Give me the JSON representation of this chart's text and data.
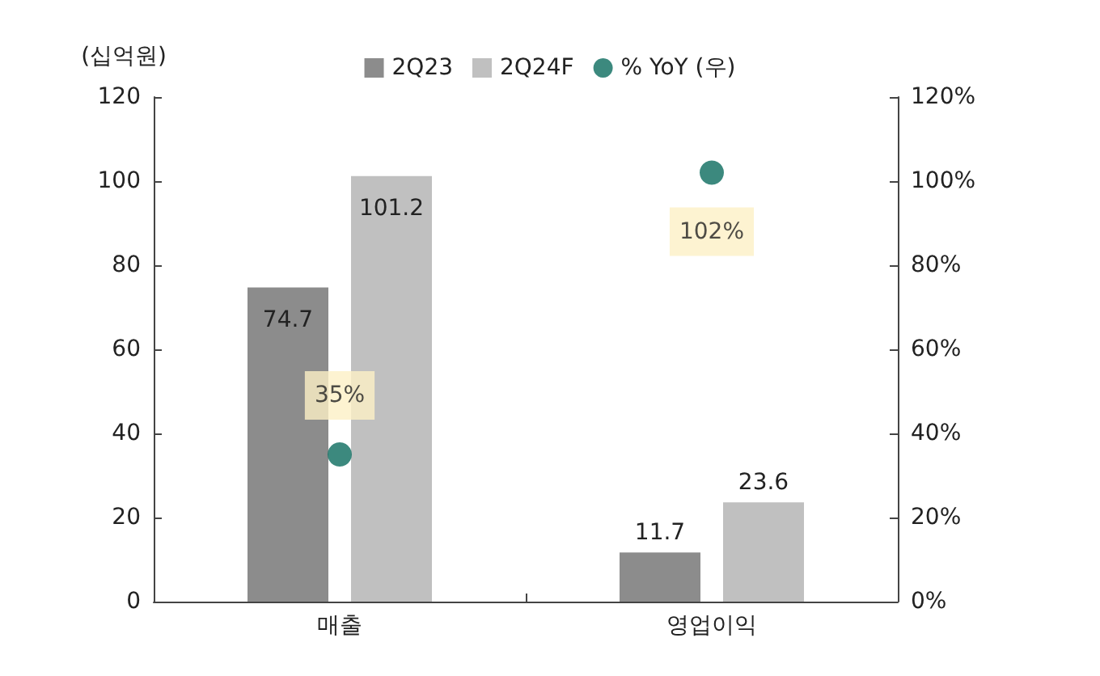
{
  "chart_data": {
    "type": "bar",
    "ylabel": "(십억원)",
    "categories": [
      "매출",
      "영업이익"
    ],
    "series": [
      {
        "name": "2Q23",
        "color": "#8c8c8c",
        "values": [
          74.7,
          11.7
        ],
        "value_labels": [
          "74.7",
          "11.7"
        ]
      },
      {
        "name": "2Q24F",
        "color": "#c0c0c0",
        "values": [
          101.2,
          23.6
        ],
        "value_labels": [
          "101.2",
          "23.6"
        ]
      },
      {
        "name": "% YoY (우)",
        "type": "scatter",
        "axis": "y2",
        "color": "#0b6b5e",
        "marker": "circle",
        "values": [
          35,
          102
        ],
        "value_labels": [
          "35%",
          "102%"
        ]
      }
    ],
    "ylim": [
      0,
      120
    ],
    "yticks": [
      0,
      20,
      40,
      60,
      80,
      100,
      120
    ],
    "y2lim": [
      0,
      120
    ],
    "y2ticks": [
      {
        "value": 0,
        "label": "0%"
      },
      {
        "value": 20,
        "label": "20%"
      },
      {
        "value": 40,
        "label": "40%"
      },
      {
        "value": 60,
        "label": "60%"
      },
      {
        "value": 80,
        "label": "80%"
      },
      {
        "value": 100,
        "label": "100%"
      },
      {
        "value": 120,
        "label": "120%"
      }
    ],
    "grid": false,
    "legend": "top"
  }
}
